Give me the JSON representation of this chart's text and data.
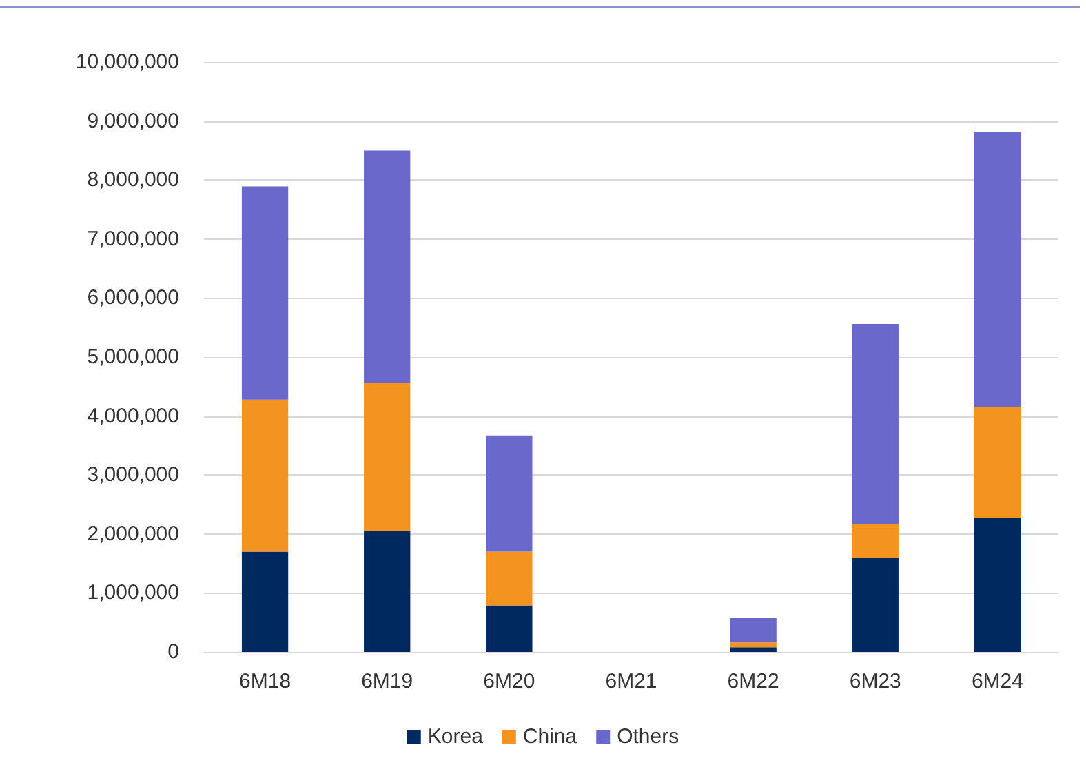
{
  "chart_data": {
    "type": "bar",
    "stacked": true,
    "categories": [
      "6M18",
      "6M19",
      "6M20",
      "6M21",
      "6M22",
      "6M23",
      "6M24"
    ],
    "series": [
      {
        "name": "Korea",
        "color": "#002960",
        "values": [
          1700000,
          2050000,
          790000,
          0,
          80000,
          1590000,
          2270000
        ]
      },
      {
        "name": "China",
        "color": "#f39420",
        "values": [
          2580000,
          2510000,
          910000,
          0,
          80000,
          570000,
          1890000
        ]
      },
      {
        "name": "Others",
        "color": "#6b68cc",
        "values": [
          3610000,
          3940000,
          1970000,
          0,
          420000,
          3400000,
          4660000
        ]
      }
    ],
    "ylim": [
      0,
      10000000
    ],
    "yticks": [
      0,
      {
        "value": 1000000,
        "label": "1,000,000"
      },
      {
        "value": 2000000,
        "label": "2,000,000"
      },
      {
        "value": 3000000,
        "label": "3,000,000"
      },
      {
        "value": 4000000,
        "label": "4,000,000"
      },
      {
        "value": 5000000,
        "label": "5,000,000"
      },
      {
        "value": 6000000,
        "label": "6,000,000"
      },
      {
        "value": 7000000,
        "label": "7,000,000"
      },
      {
        "value": 8000000,
        "label": "8,000,000"
      },
      {
        "value": 9000000,
        "label": "9,000,000"
      },
      {
        "value": 10000000,
        "label": "10,000,000"
      }
    ],
    "grid": "y",
    "legend": "bottom"
  }
}
